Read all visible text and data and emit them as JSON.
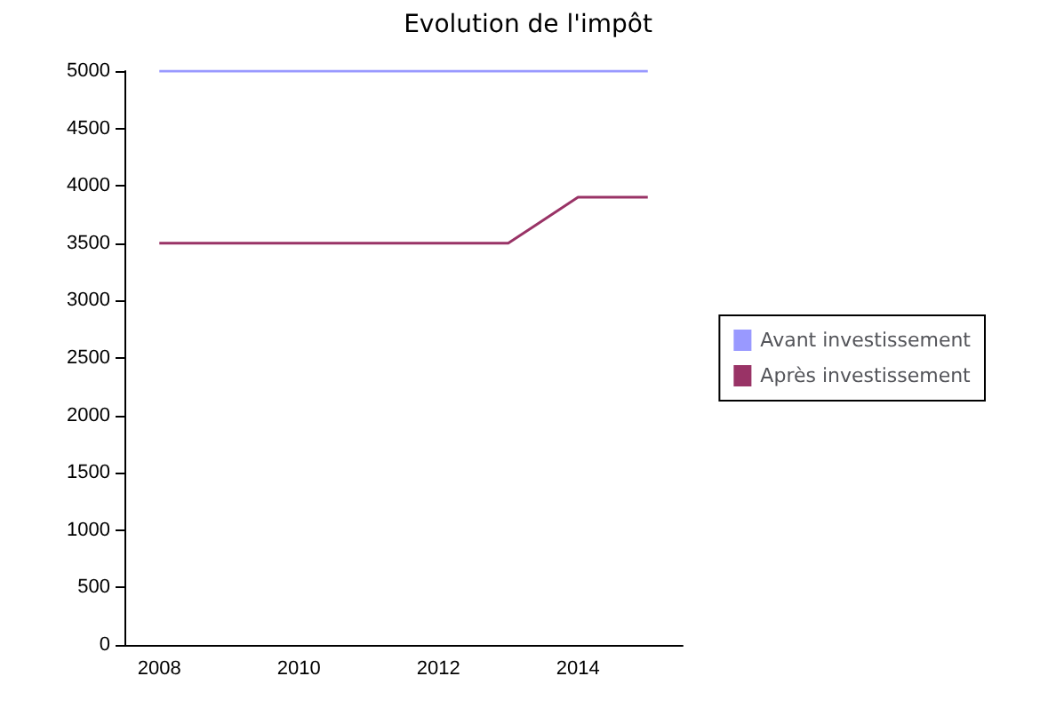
{
  "chart_data": {
    "type": "line",
    "title": "Evolution de l'impôt",
    "categories": [
      "2008",
      null,
      "2010",
      null,
      "2012",
      null,
      "2014",
      null
    ],
    "series": [
      {
        "name": "Avant investissement",
        "color": "#9999ff",
        "values": [
          5000,
          5000,
          5000,
          5000,
          5000,
          5000,
          5000,
          5000
        ]
      },
      {
        "name": "Après investissement",
        "color": "#993366",
        "values": [
          3500,
          3500,
          3500,
          3500,
          3500,
          3500,
          3900,
          3900
        ]
      }
    ],
    "ylim": [
      0,
      5000
    ],
    "yticks": [
      0,
      500,
      1000,
      1500,
      2000,
      2500,
      3000,
      3500,
      4000,
      4500,
      5000
    ],
    "grid": false,
    "legend": "right",
    "marker": "none",
    "line_style": "solid"
  }
}
